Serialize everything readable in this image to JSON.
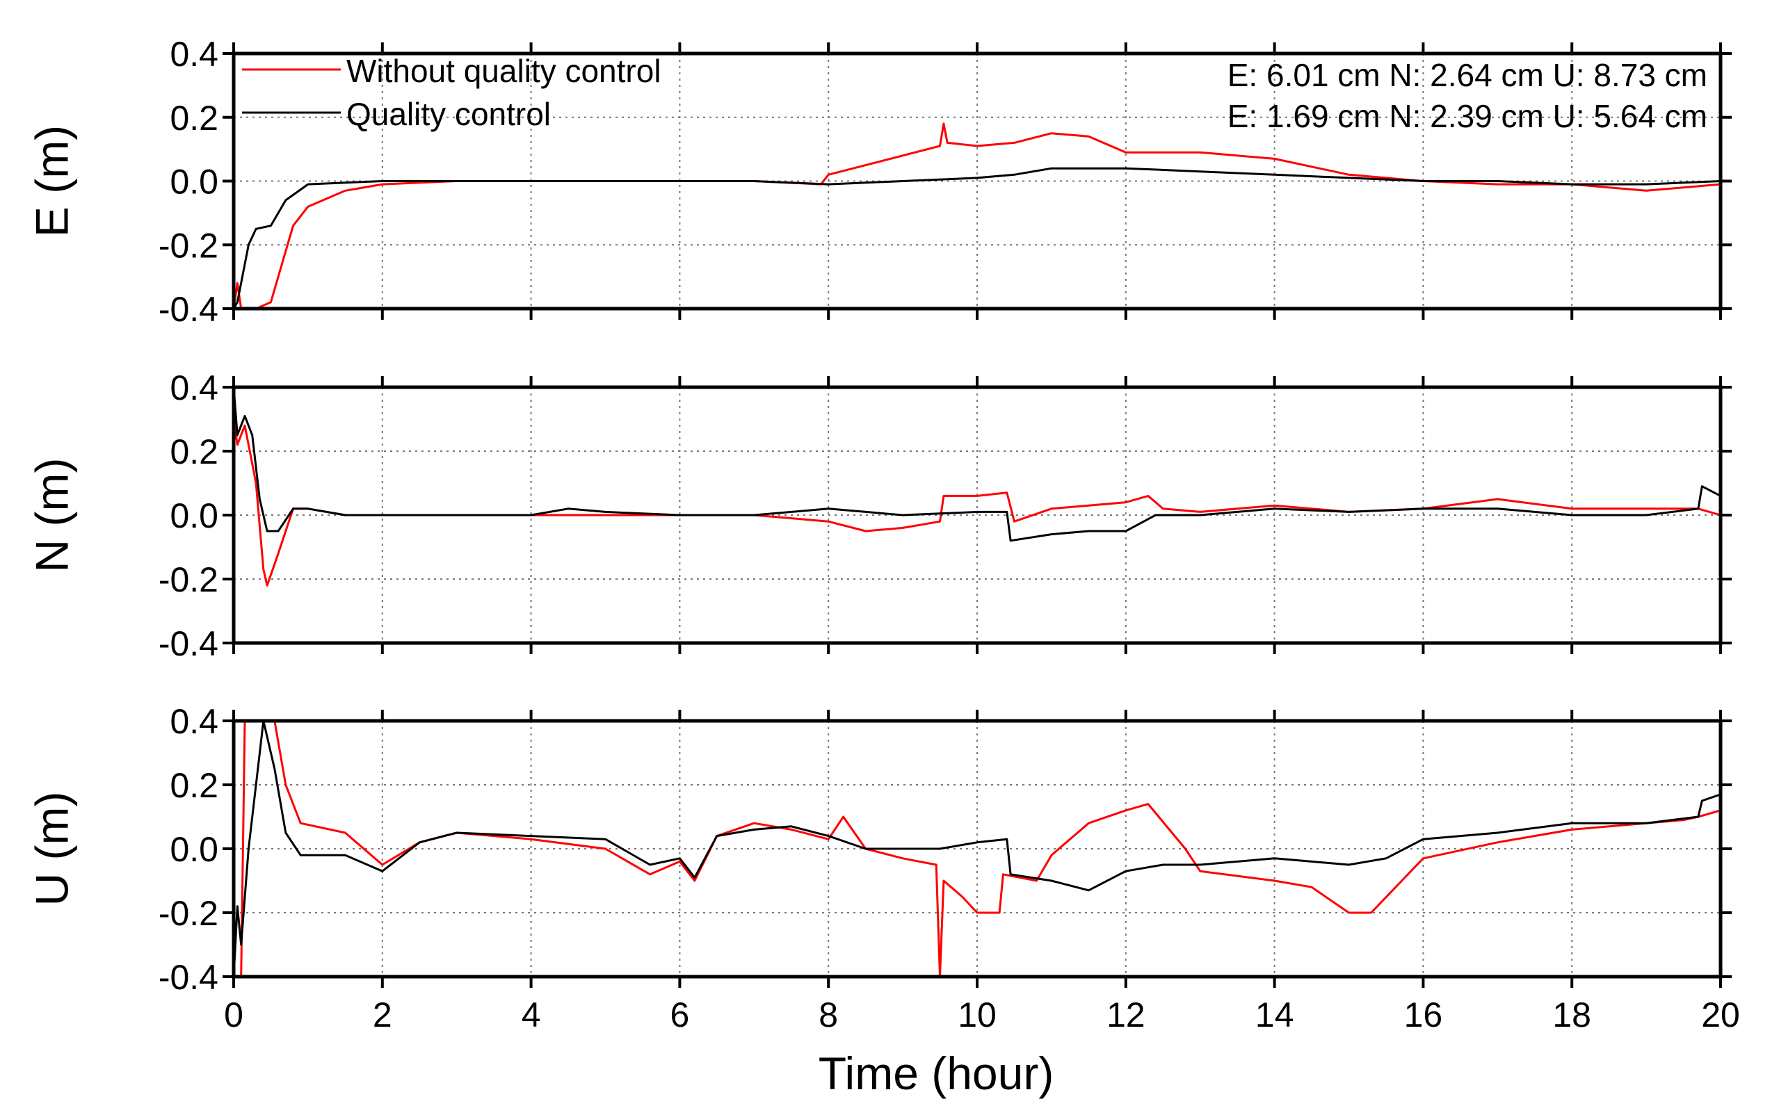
{
  "chart_data": {
    "type": "line",
    "x_label": "Time (hour)",
    "x_ticks": [
      "0",
      "2",
      "4",
      "6",
      "8",
      "10",
      "12",
      "14",
      "16",
      "18",
      "20"
    ],
    "xlim": [
      0,
      20
    ],
    "legend": {
      "placement": "top-left",
      "items": [
        {
          "name": "Without quality control",
          "color": "#ff0000"
        },
        {
          "name": "Quality control",
          "color": "#000000"
        }
      ]
    },
    "stats": [
      "E: 6.01 cm N: 2.64 cm U: 8.73 cm",
      "E: 1.69 cm N: 2.39 cm U: 5.64 cm"
    ],
    "panels": [
      {
        "name": "E",
        "ylabel": "E (m)",
        "ylim": [
          -0.4,
          0.4
        ],
        "y_ticks": [
          "0.4",
          "0.2",
          "0.0",
          "-0.2",
          "-0.4"
        ],
        "series": [
          {
            "name": "Without quality control",
            "color": "#ff0000",
            "points": [
              [
                0,
                -0.4
              ],
              [
                0.05,
                -0.32
              ],
              [
                0.1,
                -0.4
              ],
              [
                0.3,
                -0.4
              ],
              [
                0.5,
                -0.38
              ],
              [
                0.6,
                -0.3
              ],
              [
                0.8,
                -0.14
              ],
              [
                1,
                -0.08
              ],
              [
                1.5,
                -0.03
              ],
              [
                2,
                -0.01
              ],
              [
                3,
                0.0
              ],
              [
                4,
                0.0
              ],
              [
                5,
                0.0
              ],
              [
                6,
                0.0
              ],
              [
                7,
                0.0
              ],
              [
                7.9,
                -0.01
              ],
              [
                8.0,
                0.02
              ],
              [
                8.5,
                0.05
              ],
              [
                9,
                0.08
              ],
              [
                9.5,
                0.11
              ],
              [
                9.55,
                0.18
              ],
              [
                9.6,
                0.12
              ],
              [
                10,
                0.11
              ],
              [
                10.5,
                0.12
              ],
              [
                11,
                0.15
              ],
              [
                11.5,
                0.14
              ],
              [
                12,
                0.09
              ],
              [
                13,
                0.09
              ],
              [
                14,
                0.07
              ],
              [
                14.8,
                0.03
              ],
              [
                15,
                0.02
              ],
              [
                16,
                0.0
              ],
              [
                17,
                -0.01
              ],
              [
                18,
                -0.01
              ],
              [
                19,
                -0.03
              ],
              [
                20,
                -0.01
              ]
            ]
          },
          {
            "name": "Quality control",
            "color": "#000000",
            "points": [
              [
                0,
                -0.4
              ],
              [
                0.05,
                -0.38
              ],
              [
                0.2,
                -0.2
              ],
              [
                0.3,
                -0.15
              ],
              [
                0.5,
                -0.14
              ],
              [
                0.7,
                -0.06
              ],
              [
                1,
                -0.01
              ],
              [
                2,
                0.0
              ],
              [
                3,
                0.0
              ],
              [
                4,
                0.0
              ],
              [
                5,
                0.0
              ],
              [
                6,
                0.0
              ],
              [
                7,
                0.0
              ],
              [
                8,
                -0.01
              ],
              [
                9,
                0.0
              ],
              [
                10,
                0.01
              ],
              [
                10.5,
                0.02
              ],
              [
                11,
                0.04
              ],
              [
                12,
                0.04
              ],
              [
                13,
                0.03
              ],
              [
                14,
                0.02
              ],
              [
                15,
                0.01
              ],
              [
                16,
                0.0
              ],
              [
                17,
                0.0
              ],
              [
                18,
                -0.01
              ],
              [
                19,
                -0.01
              ],
              [
                20,
                0.0
              ]
            ]
          }
        ]
      },
      {
        "name": "N",
        "ylabel": "N (m)",
        "ylim": [
          -0.4,
          0.4
        ],
        "y_ticks": [
          "0.4",
          "0.2",
          "0.0",
          "-0.2",
          "-0.4"
        ],
        "series": [
          {
            "name": "Without quality control",
            "color": "#ff0000",
            "points": [
              [
                0,
                0.3
              ],
              [
                0.05,
                0.22
              ],
              [
                0.15,
                0.28
              ],
              [
                0.3,
                0.1
              ],
              [
                0.4,
                -0.17
              ],
              [
                0.45,
                -0.22
              ],
              [
                0.6,
                -0.12
              ],
              [
                0.8,
                0.02
              ],
              [
                1,
                0.02
              ],
              [
                1.5,
                0.0
              ],
              [
                2,
                0.0
              ],
              [
                3,
                0.0
              ],
              [
                4,
                0.0
              ],
              [
                5,
                0.0
              ],
              [
                6,
                0.0
              ],
              [
                7,
                0.0
              ],
              [
                8,
                -0.02
              ],
              [
                8.5,
                -0.05
              ],
              [
                9,
                -0.04
              ],
              [
                9.5,
                -0.02
              ],
              [
                9.55,
                0.06
              ],
              [
                10,
                0.06
              ],
              [
                10.4,
                0.07
              ],
              [
                10.5,
                -0.02
              ],
              [
                11,
                0.02
              ],
              [
                11.5,
                0.03
              ],
              [
                12,
                0.04
              ],
              [
                12.3,
                0.06
              ],
              [
                12.5,
                0.02
              ],
              [
                13,
                0.01
              ],
              [
                14,
                0.03
              ],
              [
                15,
                0.01
              ],
              [
                16,
                0.02
              ],
              [
                17,
                0.05
              ],
              [
                18,
                0.02
              ],
              [
                19,
                0.02
              ],
              [
                19.7,
                0.02
              ],
              [
                20,
                0.0
              ]
            ]
          },
          {
            "name": "Quality control",
            "color": "#000000",
            "points": [
              [
                0,
                0.4
              ],
              [
                0.05,
                0.25
              ],
              [
                0.15,
                0.31
              ],
              [
                0.25,
                0.25
              ],
              [
                0.35,
                0.05
              ],
              [
                0.45,
                -0.05
              ],
              [
                0.6,
                -0.05
              ],
              [
                0.8,
                0.02
              ],
              [
                1,
                0.02
              ],
              [
                1.5,
                0.0
              ],
              [
                2,
                0.0
              ],
              [
                3,
                0.0
              ],
              [
                4,
                0.0
              ],
              [
                4.5,
                0.02
              ],
              [
                5,
                0.01
              ],
              [
                6,
                0.0
              ],
              [
                7,
                0.0
              ],
              [
                8,
                0.02
              ],
              [
                9,
                0.0
              ],
              [
                10,
                0.01
              ],
              [
                10.4,
                0.01
              ],
              [
                10.45,
                -0.08
              ],
              [
                11,
                -0.06
              ],
              [
                11.5,
                -0.05
              ],
              [
                12,
                -0.05
              ],
              [
                12.4,
                0.0
              ],
              [
                13,
                0.0
              ],
              [
                14,
                0.02
              ],
              [
                15,
                0.01
              ],
              [
                16,
                0.02
              ],
              [
                17,
                0.02
              ],
              [
                18,
                0.0
              ],
              [
                19,
                0.0
              ],
              [
                19.7,
                0.02
              ],
              [
                19.75,
                0.09
              ],
              [
                20,
                0.06
              ]
            ]
          }
        ]
      },
      {
        "name": "U",
        "ylabel": "U (m)",
        "ylim": [
          -0.4,
          0.4
        ],
        "y_ticks": [
          "0.4",
          "0.2",
          "0.0",
          "-0.2",
          "-0.4"
        ],
        "series": [
          {
            "name": "Without quality control",
            "color": "#ff0000",
            "points": [
              [
                0,
                -0.4
              ],
              [
                0.1,
                -0.4
              ],
              [
                0.15,
                0.4
              ],
              [
                0.2,
                0.4
              ],
              [
                0.55,
                0.4
              ],
              [
                0.7,
                0.2
              ],
              [
                0.9,
                0.08
              ],
              [
                1.5,
                0.05
              ],
              [
                2,
                -0.05
              ],
              [
                2.5,
                0.02
              ],
              [
                3,
                0.05
              ],
              [
                4,
                0.03
              ],
              [
                5,
                0.0
              ],
              [
                5.6,
                -0.08
              ],
              [
                6,
                -0.04
              ],
              [
                6.2,
                -0.1
              ],
              [
                6.5,
                0.04
              ],
              [
                7,
                0.08
              ],
              [
                7.5,
                0.06
              ],
              [
                8,
                0.03
              ],
              [
                8.2,
                0.1
              ],
              [
                8.5,
                0.0
              ],
              [
                9,
                -0.03
              ],
              [
                9.45,
                -0.05
              ],
              [
                9.5,
                -0.4
              ],
              [
                9.55,
                -0.1
              ],
              [
                9.8,
                -0.15
              ],
              [
                10,
                -0.2
              ],
              [
                10.3,
                -0.2
              ],
              [
                10.35,
                -0.08
              ],
              [
                10.8,
                -0.1
              ],
              [
                11,
                -0.02
              ],
              [
                11.5,
                0.08
              ],
              [
                12,
                0.12
              ],
              [
                12.3,
                0.14
              ],
              [
                12.8,
                0.0
              ],
              [
                13,
                -0.07
              ],
              [
                14,
                -0.1
              ],
              [
                14.5,
                -0.12
              ],
              [
                15,
                -0.2
              ],
              [
                15.3,
                -0.2
              ],
              [
                16,
                -0.03
              ],
              [
                17,
                0.02
              ],
              [
                18,
                0.06
              ],
              [
                19,
                0.08
              ],
              [
                19.5,
                0.09
              ],
              [
                19.7,
                0.1
              ],
              [
                20,
                0.12
              ]
            ]
          },
          {
            "name": "Quality control",
            "color": "#000000",
            "points": [
              [
                0,
                -0.4
              ],
              [
                0.05,
                -0.18
              ],
              [
                0.1,
                -0.3
              ],
              [
                0.2,
                0.0
              ],
              [
                0.3,
                0.2
              ],
              [
                0.4,
                0.4
              ],
              [
                0.55,
                0.25
              ],
              [
                0.7,
                0.05
              ],
              [
                0.9,
                -0.02
              ],
              [
                1.5,
                -0.02
              ],
              [
                2,
                -0.07
              ],
              [
                2.5,
                0.02
              ],
              [
                3,
                0.05
              ],
              [
                4,
                0.04
              ],
              [
                5,
                0.03
              ],
              [
                5.6,
                -0.05
              ],
              [
                6,
                -0.03
              ],
              [
                6.2,
                -0.09
              ],
              [
                6.5,
                0.04
              ],
              [
                7,
                0.06
              ],
              [
                7.5,
                0.07
              ],
              [
                8,
                0.04
              ],
              [
                8.5,
                0.0
              ],
              [
                9,
                0.0
              ],
              [
                9.5,
                0.0
              ],
              [
                10,
                0.02
              ],
              [
                10.4,
                0.03
              ],
              [
                10.45,
                -0.08
              ],
              [
                11,
                -0.1
              ],
              [
                11.5,
                -0.13
              ],
              [
                12,
                -0.07
              ],
              [
                12.5,
                -0.05
              ],
              [
                13,
                -0.05
              ],
              [
                14,
                -0.03
              ],
              [
                14.5,
                -0.04
              ],
              [
                15,
                -0.05
              ],
              [
                15.5,
                -0.03
              ],
              [
                16,
                0.03
              ],
              [
                17,
                0.05
              ],
              [
                18,
                0.08
              ],
              [
                19,
                0.08
              ],
              [
                19.7,
                0.1
              ],
              [
                19.75,
                0.15
              ],
              [
                20,
                0.17
              ]
            ]
          }
        ]
      }
    ]
  }
}
